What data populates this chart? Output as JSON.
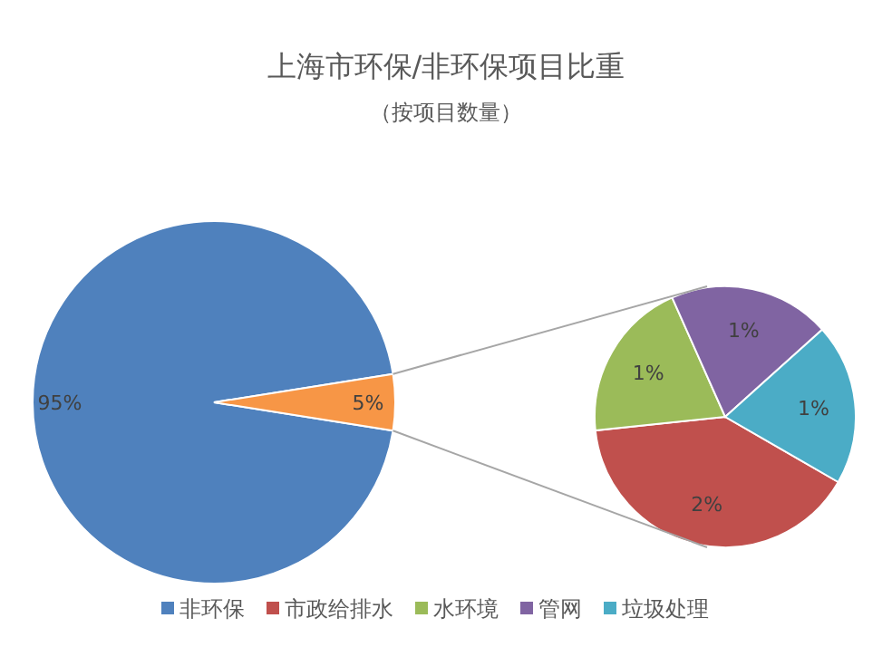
{
  "chart_data": [
    {
      "type": "pie",
      "title": "上海市环保/非环保项目比重",
      "subtitle": "（按项目数量）",
      "categories": [
        "非环保",
        null
      ],
      "values": [
        95,
        5
      ],
      "colors": [
        "#4f81bd",
        "#f79646"
      ],
      "value_labels": [
        "95%",
        "5%"
      ],
      "legend": "bottom"
    },
    {
      "type": "pie",
      "categories": [
        "市政给排水",
        "水环境",
        "管网",
        "垃圾处理"
      ],
      "values": [
        2,
        1,
        1,
        1
      ],
      "colors": [
        "#c0504d",
        "#9bbb59",
        "#8064a2",
        "#4bacc6"
      ],
      "value_labels": [
        "2%",
        "1%",
        "1%",
        "1%"
      ],
      "legend": "bottom"
    }
  ]
}
